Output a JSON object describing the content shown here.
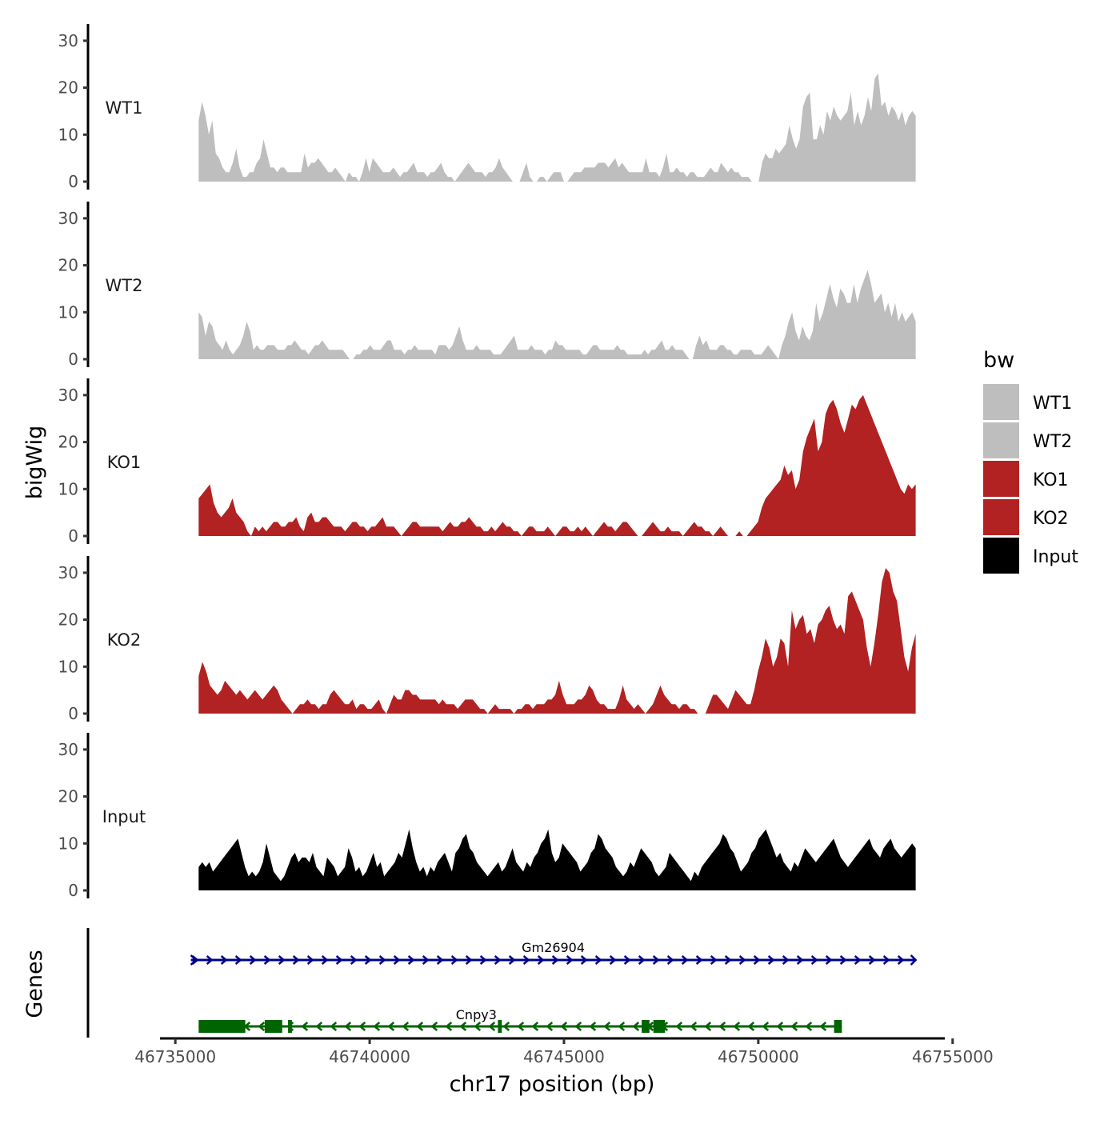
{
  "chart_data": {
    "type": "area",
    "ylabel": "bigWig",
    "genes_label": "Genes",
    "xlabel": "chr17 position (bp)",
    "xlim": [
      46734700,
      46755000
    ],
    "x_ticks": [
      46735000,
      46740000,
      46745000,
      46750000,
      46755000
    ],
    "x_tick_labels": [
      "46735000",
      "46740000",
      "46745000",
      "46750000",
      "46755000"
    ],
    "ylim": [
      0,
      33
    ],
    "y_ticks": [
      0,
      10,
      20,
      30
    ],
    "y_tick_labels": [
      "0",
      "10",
      "20",
      "30"
    ],
    "data_range": [
      46735600,
      46754050
    ],
    "legend": {
      "title": "bw",
      "items": [
        {
          "label": "WT1",
          "color": "#bebebe"
        },
        {
          "label": "WT2",
          "color": "#bebebe"
        },
        {
          "label": "KO1",
          "color": "#b22222"
        },
        {
          "label": "KO2",
          "color": "#b22222"
        },
        {
          "label": "Input",
          "color": "#000000"
        }
      ]
    },
    "series": [
      {
        "name": "WT1",
        "color": "#bebebe",
        "values": [
          13,
          17,
          14,
          10,
          13,
          6,
          5,
          3,
          2,
          2,
          4,
          7,
          3,
          1,
          1,
          2,
          2,
          4,
          5,
          9,
          6,
          3,
          3,
          2,
          3,
          3,
          2,
          2,
          2,
          2,
          2,
          6,
          3,
          4,
          4,
          5,
          4,
          3,
          2,
          2,
          3,
          2,
          1,
          0,
          2,
          1,
          1,
          0,
          2,
          5,
          2,
          5,
          4,
          3,
          2,
          2,
          2,
          3,
          2,
          1,
          2,
          2,
          3,
          4,
          2,
          2,
          2,
          1,
          2,
          2,
          3,
          4,
          2,
          1,
          1,
          0,
          1,
          2,
          3,
          4,
          3,
          2,
          2,
          2,
          1,
          2,
          2,
          3,
          5,
          3,
          2,
          1,
          0,
          0,
          0,
          2,
          4,
          1,
          0,
          0,
          1,
          1,
          0,
          1,
          2,
          2,
          2,
          0,
          0,
          1,
          2,
          2,
          2,
          3,
          3,
          3,
          3,
          4,
          4,
          4,
          3,
          4,
          5,
          3,
          4,
          3,
          2,
          2,
          2,
          2,
          2,
          5,
          2,
          2,
          2,
          1,
          3,
          6,
          2,
          2,
          3,
          2,
          2,
          1,
          2,
          2,
          1,
          1,
          1,
          2,
          3,
          2,
          2,
          4,
          3,
          2,
          3,
          2,
          2,
          1,
          1,
          1,
          0,
          0,
          0,
          4,
          6,
          5,
          5,
          7,
          6,
          7,
          8,
          12,
          9,
          7,
          9,
          16,
          18,
          19,
          9,
          9,
          12,
          10,
          15,
          13,
          16,
          14,
          13,
          14,
          15,
          19,
          12,
          15,
          12,
          14,
          18,
          15,
          22,
          23,
          16,
          17,
          14,
          16,
          15,
          13,
          15,
          12,
          14,
          15,
          14
        ]
      },
      {
        "name": "WT2",
        "color": "#bebebe",
        "values": [
          10,
          9,
          5,
          8,
          7,
          4,
          3,
          2,
          4,
          2,
          1,
          2,
          3,
          5,
          8,
          6,
          2,
          3,
          2,
          2,
          3,
          3,
          3,
          2,
          2,
          2,
          3,
          3,
          4,
          3,
          2,
          2,
          1,
          2,
          3,
          3,
          4,
          3,
          2,
          2,
          2,
          2,
          2,
          1,
          0,
          0,
          1,
          1,
          2,
          2,
          3,
          2,
          2,
          2,
          3,
          4,
          4,
          2,
          2,
          2,
          1,
          2,
          2,
          3,
          2,
          2,
          2,
          2,
          2,
          1,
          3,
          3,
          3,
          2,
          3,
          5,
          7,
          4,
          2,
          2,
          2,
          3,
          2,
          2,
          2,
          2,
          1,
          1,
          1,
          2,
          3,
          4,
          5,
          2,
          2,
          2,
          2,
          3,
          2,
          2,
          2,
          1,
          2,
          2,
          4,
          3,
          3,
          2,
          2,
          2,
          2,
          2,
          1,
          1,
          2,
          3,
          3,
          2,
          2,
          2,
          2,
          2,
          3,
          2,
          2,
          1,
          1,
          1,
          1,
          1,
          2,
          1,
          2,
          2,
          3,
          4,
          2,
          2,
          3,
          2,
          2,
          2,
          1,
          0,
          0,
          3,
          5,
          3,
          4,
          2,
          2,
          2,
          3,
          3,
          2,
          2,
          1,
          1,
          2,
          2,
          2,
          2,
          1,
          1,
          1,
          2,
          3,
          2,
          1,
          0,
          3,
          5,
          8,
          10,
          6,
          4,
          7,
          5,
          4,
          6,
          12,
          8,
          10,
          13,
          16,
          13,
          11,
          15,
          14,
          12,
          12,
          16,
          12,
          15,
          17,
          19,
          16,
          12,
          13,
          14,
          10,
          12,
          9,
          12,
          8,
          10,
          8,
          9,
          10,
          8
        ]
      },
      {
        "name": "KO1",
        "color": "#b22222",
        "values": [
          8,
          9,
          10,
          11,
          7,
          5,
          4,
          5,
          6,
          8,
          5,
          4,
          3,
          1,
          0,
          2,
          1,
          2,
          1,
          2,
          3,
          3,
          2,
          2,
          3,
          3,
          4,
          2,
          1,
          4,
          5,
          3,
          3,
          4,
          4,
          3,
          2,
          2,
          2,
          1,
          2,
          3,
          3,
          2,
          2,
          1,
          2,
          2,
          3,
          4,
          2,
          2,
          2,
          1,
          0,
          1,
          2,
          3,
          3,
          2,
          2,
          2,
          2,
          2,
          2,
          1,
          2,
          3,
          2,
          2,
          3,
          3,
          4,
          3,
          2,
          2,
          1,
          1,
          2,
          1,
          2,
          3,
          2,
          2,
          1,
          1,
          0,
          1,
          2,
          2,
          1,
          1,
          1,
          2,
          1,
          0,
          1,
          2,
          2,
          1,
          1,
          2,
          1,
          2,
          1,
          0,
          1,
          2,
          3,
          2,
          2,
          1,
          2,
          3,
          3,
          2,
          1,
          0,
          0,
          1,
          2,
          3,
          2,
          1,
          1,
          2,
          1,
          1,
          1,
          0,
          1,
          2,
          3,
          2,
          2,
          1,
          1,
          0,
          1,
          2,
          1,
          0,
          0,
          0,
          1,
          0,
          0,
          1,
          2,
          3,
          6,
          8,
          9,
          10,
          11,
          12,
          15,
          13,
          14,
          10,
          12,
          18,
          21,
          23,
          25,
          18,
          20,
          26,
          28,
          29,
          27,
          24,
          22,
          25,
          28,
          27,
          29,
          30,
          28,
          26,
          24,
          22,
          20,
          18,
          16,
          14,
          12,
          10,
          9,
          11,
          10,
          11
        ]
      },
      {
        "name": "KO2",
        "color": "#b22222",
        "values": [
          8,
          11,
          9,
          6,
          5,
          4,
          5,
          7,
          6,
          5,
          4,
          5,
          4,
          3,
          4,
          5,
          4,
          3,
          4,
          5,
          6,
          5,
          3,
          2,
          1,
          0,
          1,
          2,
          2,
          3,
          2,
          2,
          1,
          2,
          2,
          4,
          5,
          4,
          3,
          2,
          2,
          3,
          1,
          2,
          2,
          1,
          1,
          2,
          3,
          1,
          0,
          2,
          4,
          3,
          3,
          5,
          5,
          4,
          4,
          3,
          3,
          3,
          3,
          3,
          2,
          3,
          2,
          2,
          2,
          1,
          2,
          3,
          3,
          3,
          2,
          1,
          1,
          0,
          1,
          2,
          1,
          1,
          1,
          1,
          0,
          1,
          1,
          2,
          2,
          1,
          2,
          2,
          2,
          3,
          3,
          4,
          7,
          4,
          2,
          2,
          2,
          3,
          3,
          4,
          6,
          5,
          3,
          2,
          2,
          1,
          1,
          1,
          3,
          6,
          3,
          2,
          1,
          2,
          1,
          0,
          1,
          2,
          4,
          6,
          4,
          3,
          2,
          2,
          1,
          2,
          2,
          1,
          1,
          0,
          0,
          0,
          2,
          4,
          4,
          3,
          2,
          1,
          3,
          5,
          4,
          3,
          2,
          2,
          5,
          9,
          12,
          16,
          14,
          10,
          12,
          16,
          15,
          10,
          22,
          18,
          20,
          21,
          17,
          18,
          15,
          19,
          20,
          22,
          23,
          20,
          18,
          19,
          17,
          25,
          26,
          24,
          22,
          20,
          14,
          10,
          15,
          21,
          28,
          31,
          30,
          26,
          24,
          18,
          12,
          9,
          14,
          17
        ]
      },
      {
        "name": "Input",
        "color": "#000000",
        "values": [
          5,
          6,
          5,
          6,
          4,
          5,
          6,
          7,
          8,
          9,
          10,
          11,
          8,
          5,
          3,
          4,
          3,
          4,
          6,
          10,
          7,
          4,
          3,
          2,
          3,
          5,
          7,
          8,
          6,
          7,
          7,
          6,
          8,
          5,
          4,
          3,
          7,
          6,
          5,
          3,
          4,
          5,
          9,
          7,
          4,
          5,
          3,
          4,
          6,
          8,
          5,
          6,
          3,
          4,
          5,
          6,
          8,
          7,
          10,
          13,
          9,
          6,
          4,
          5,
          3,
          5,
          4,
          6,
          7,
          8,
          6,
          4,
          8,
          9,
          11,
          12,
          9,
          8,
          6,
          5,
          4,
          3,
          4,
          5,
          6,
          4,
          5,
          7,
          9,
          6,
          5,
          4,
          6,
          5,
          7,
          8,
          10,
          11,
          13,
          8,
          6,
          7,
          10,
          9,
          8,
          7,
          6,
          4,
          5,
          6,
          8,
          9,
          12,
          11,
          9,
          8,
          7,
          5,
          4,
          3,
          4,
          6,
          5,
          7,
          9,
          8,
          7,
          6,
          4,
          3,
          4,
          5,
          8,
          7,
          6,
          5,
          4,
          3,
          2,
          4,
          3,
          5,
          6,
          7,
          8,
          9,
          10,
          12,
          11,
          9,
          8,
          6,
          4,
          5,
          6,
          8,
          9,
          11,
          12,
          13,
          11,
          9,
          7,
          8,
          6,
          5,
          4,
          6,
          5,
          7,
          9,
          8,
          7,
          6,
          7,
          8,
          9,
          10,
          11,
          9,
          7,
          6,
          5,
          6,
          7,
          8,
          9,
          10,
          11,
          9,
          8,
          7,
          9,
          10,
          11,
          9,
          8,
          7,
          8,
          9,
          10,
          9
        ]
      }
    ],
    "genes": [
      {
        "name": "Gm26904",
        "color": "#00008b",
        "strand": "+",
        "start": 46735400,
        "end": 46754050,
        "exons": []
      },
      {
        "name": "Cnpy3",
        "color": "#006400",
        "strand": "-",
        "start": 46735600,
        "end": 46752150,
        "exons": [
          [
            46735600,
            46736800
          ],
          [
            46737300,
            46737750
          ],
          [
            46737900,
            46738000
          ],
          [
            46743300,
            46743400
          ],
          [
            46747000,
            46747200
          ],
          [
            46747300,
            46747600
          ],
          [
            46751950,
            46752150
          ]
        ]
      }
    ]
  }
}
